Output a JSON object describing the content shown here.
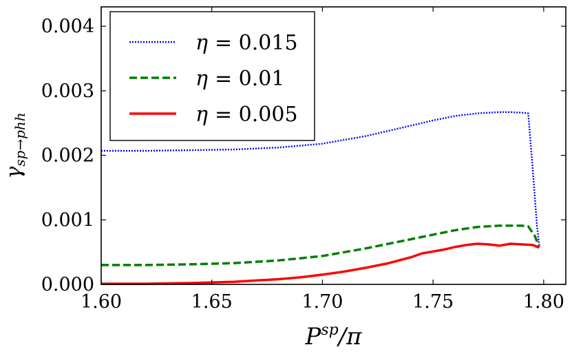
{
  "chart_data": {
    "type": "line",
    "title": "",
    "xlabel": {
      "main": "P",
      "sup": "sp",
      "tail": "/π"
    },
    "ylabel": {
      "main": "γ",
      "sub": "sp→phh"
    },
    "xlim": [
      1.6,
      1.81
    ],
    "ylim": [
      0.0,
      0.0043
    ],
    "xticks": [
      1.6,
      1.65,
      1.7,
      1.75,
      1.8
    ],
    "xtick_labels": [
      "1.60",
      "1.65",
      "1.70",
      "1.75",
      "1.80"
    ],
    "yticks": [
      0.0,
      0.001,
      0.002,
      0.003,
      0.004
    ],
    "ytick_labels": [
      "0.000",
      "0.001",
      "0.002",
      "0.003",
      "0.004"
    ],
    "grid": false,
    "legend_position": "top-left",
    "series": [
      {
        "name": "η = 0.015",
        "label_var": "η",
        "label_val": "= 0.015",
        "color": "#0000ff",
        "style": "dotted",
        "x": [
          1.6,
          1.62,
          1.64,
          1.66,
          1.68,
          1.7,
          1.72,
          1.74,
          1.75,
          1.76,
          1.77,
          1.78,
          1.785,
          1.79,
          1.793,
          1.795,
          1.797,
          1.798
        ],
        "y": [
          0.00207,
          0.00207,
          0.00208,
          0.00209,
          0.00212,
          0.00218,
          0.0023,
          0.00246,
          0.00254,
          0.00261,
          0.00265,
          0.00267,
          0.00267,
          0.00266,
          0.00265,
          0.0018,
          0.0009,
          0.0006
        ]
      },
      {
        "name": "η = 0.01",
        "label_var": "η",
        "label_val": "= 0.01",
        "color": "#007f00",
        "style": "dashed",
        "x": [
          1.6,
          1.62,
          1.64,
          1.66,
          1.68,
          1.7,
          1.72,
          1.74,
          1.75,
          1.76,
          1.77,
          1.78,
          1.79,
          1.793,
          1.796,
          1.798
        ],
        "y": [
          0.0003,
          0.0003,
          0.00031,
          0.00033,
          0.00037,
          0.00044,
          0.00056,
          0.0007,
          0.00077,
          0.00084,
          0.00089,
          0.00091,
          0.00091,
          0.0009,
          0.00075,
          0.00058
        ]
      },
      {
        "name": "η = 0.005",
        "label_var": "η",
        "label_val": "= 0.005",
        "color": "#ff0000",
        "style": "solid",
        "x": [
          1.6,
          1.62,
          1.64,
          1.66,
          1.68,
          1.69,
          1.7,
          1.71,
          1.72,
          1.73,
          1.74,
          1.745,
          1.75,
          1.755,
          1.76,
          1.765,
          1.77,
          1.775,
          1.78,
          1.785,
          1.79,
          1.795,
          1.798
        ],
        "y": [
          1e-05,
          1e-05,
          2e-05,
          4e-05,
          8e-05,
          0.00011,
          0.00015,
          0.0002,
          0.00026,
          0.00033,
          0.00042,
          0.00048,
          0.00051,
          0.00054,
          0.00058,
          0.00061,
          0.00063,
          0.00062,
          0.0006,
          0.00063,
          0.00062,
          0.00061,
          0.00057
        ]
      }
    ]
  }
}
